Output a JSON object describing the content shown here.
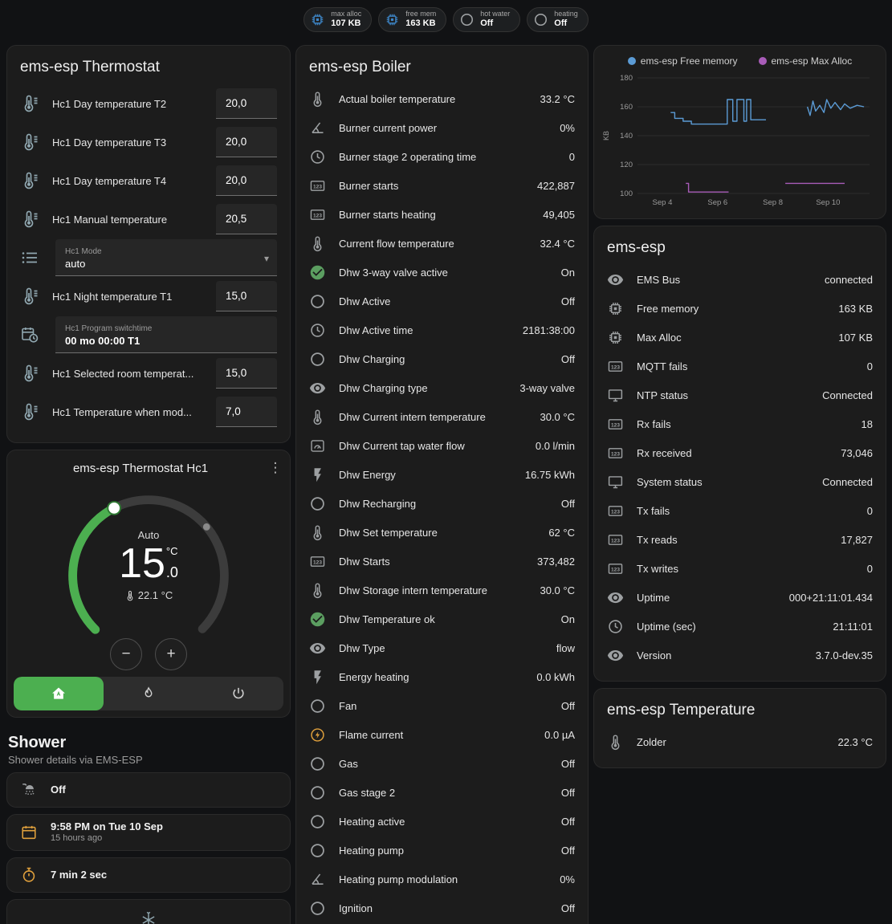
{
  "colors": {
    "accent_green": "#4caf50",
    "amber": "#e0a03c",
    "badge_blue": "#3d85c6",
    "icon_gray": "#9da0a2",
    "icon_blue_gray": "#90a7b0",
    "chart_blue": "#5b9bd5",
    "chart_purple": "#a85cb8"
  },
  "topbar": {
    "badges": [
      {
        "icon": "chip",
        "icon_color": "#3d85c6",
        "label": "max alloc",
        "value": "107 KB"
      },
      {
        "icon": "chip",
        "icon_color": "#3d85c6",
        "label": "free mem",
        "value": "163 KB"
      },
      {
        "icon": "circle",
        "icon_color": "#9da0a2",
        "label": "hot water",
        "value": "Off"
      },
      {
        "icon": "circle",
        "icon_color": "#9da0a2",
        "label": "heating",
        "value": "Off"
      }
    ]
  },
  "thermostat_card": {
    "title": "ems-esp Thermostat",
    "rows": [
      {
        "type": "number",
        "icon": "thermometer-lines",
        "label": "Hc1 Day temperature T2",
        "value": "20,0"
      },
      {
        "type": "number",
        "icon": "thermometer-lines",
        "label": "Hc1 Day temperature T3",
        "value": "20,0"
      },
      {
        "type": "number",
        "icon": "thermometer-lines",
        "label": "Hc1 Day temperature T4",
        "value": "20,0"
      },
      {
        "type": "number",
        "icon": "thermometer-lines",
        "label": "Hc1 Manual temperature",
        "value": "20,5"
      },
      {
        "type": "select",
        "icon": "format-list",
        "label": "Hc1 Mode",
        "value": "auto"
      },
      {
        "type": "number",
        "icon": "thermometer-lines",
        "label": "Hc1 Night temperature T1",
        "value": "15,0"
      },
      {
        "type": "datetime",
        "icon": "calendar-clock",
        "label": "Hc1 Program switchtime",
        "value": "00 mo 00:00 T1"
      },
      {
        "type": "number",
        "icon": "thermometer-lines",
        "label": "Hc1 Selected room temperat...",
        "value": "15,0"
      },
      {
        "type": "number",
        "icon": "thermometer-lines",
        "label": "Hc1 Temperature when mod...",
        "value": "7,0"
      }
    ]
  },
  "dial_card": {
    "title": "ems-esp Thermostat Hc1",
    "mode": "Auto",
    "target_int": "15",
    "target_dec": ".0",
    "unit": "°C",
    "current": "22.1 °C",
    "decrease_label": "−",
    "increase_label": "+",
    "buttons": [
      {
        "icon": "home-auto",
        "name": "auto-mode",
        "active": true
      },
      {
        "icon": "flame",
        "name": "heat-mode",
        "active": false
      },
      {
        "icon": "power",
        "name": "off-mode",
        "active": false
      }
    ]
  },
  "shower": {
    "title": "Shower",
    "subtitle": "Shower details via EMS-ESP",
    "cards": [
      {
        "icon": "shower",
        "icon_color": "#9da0a2",
        "primary": "Off",
        "secondary": ""
      },
      {
        "icon": "calendar",
        "icon_color": "#e0a03c",
        "primary": "9:58 PM on Tue 10 Sep",
        "secondary": "15 hours ago"
      },
      {
        "icon": "timer",
        "icon_color": "#e0a03c",
        "primary": "7 min 2 sec",
        "secondary": ""
      },
      {
        "icon": "snowflake",
        "icon_color": "#90a7b0",
        "primary": "",
        "secondary": ""
      }
    ]
  },
  "boiler_card": {
    "title": "ems-esp Boiler",
    "rows": [
      {
        "icon": "thermometer",
        "label": "Actual boiler temperature",
        "value": "33.2 °C"
      },
      {
        "icon": "gauge",
        "label": "Burner current power",
        "value": "0%"
      },
      {
        "icon": "clock",
        "label": "Burner stage 2 operating time",
        "value": "0"
      },
      {
        "icon": "counter",
        "label": "Burner starts",
        "value": "422,887"
      },
      {
        "icon": "counter",
        "label": "Burner starts heating",
        "value": "49,405"
      },
      {
        "icon": "thermometer",
        "label": "Current flow temperature",
        "value": "32.4 °C"
      },
      {
        "icon": "check-circle",
        "color": "#5b9e60",
        "label": "Dhw 3-way valve active",
        "value": "On"
      },
      {
        "icon": "circle",
        "label": "Dhw Active",
        "value": "Off"
      },
      {
        "icon": "clock",
        "label": "Dhw Active time",
        "value": "2181:38:00"
      },
      {
        "icon": "circle",
        "label": "Dhw Charging",
        "value": "Off"
      },
      {
        "icon": "eye",
        "label": "Dhw Charging type",
        "value": "3-way valve"
      },
      {
        "icon": "thermometer",
        "label": "Dhw Current intern temperature",
        "value": "30.0 °C"
      },
      {
        "icon": "water-meter",
        "label": "Dhw Current tap water flow",
        "value": "0.0 l/min"
      },
      {
        "icon": "flash",
        "label": "Dhw Energy",
        "value": "16.75 kWh"
      },
      {
        "icon": "circle",
        "label": "Dhw Recharging",
        "value": "Off"
      },
      {
        "icon": "thermometer",
        "label": "Dhw Set temperature",
        "value": "62 °C"
      },
      {
        "icon": "counter",
        "label": "Dhw Starts",
        "value": "373,482"
      },
      {
        "icon": "thermometer",
        "label": "Dhw Storage intern temperature",
        "value": "30.0 °C"
      },
      {
        "icon": "check-circle",
        "color": "#5b9e60",
        "label": "Dhw Temperature ok",
        "value": "On"
      },
      {
        "icon": "eye",
        "label": "Dhw Type",
        "value": "flow"
      },
      {
        "icon": "flash",
        "label": "Energy heating",
        "value": "0.0 kWh"
      },
      {
        "icon": "circle",
        "label": "Fan",
        "value": "Off"
      },
      {
        "icon": "current-circle",
        "color": "#e0a03c",
        "label": "Flame current",
        "value": "0.0 µA"
      },
      {
        "icon": "circle",
        "label": "Gas",
        "value": "Off"
      },
      {
        "icon": "circle",
        "label": "Gas stage 2",
        "value": "Off"
      },
      {
        "icon": "circle",
        "label": "Heating active",
        "value": "Off"
      },
      {
        "icon": "circle",
        "label": "Heating pump",
        "value": "Off"
      },
      {
        "icon": "gauge",
        "label": "Heating pump modulation",
        "value": "0%"
      },
      {
        "icon": "circle",
        "label": "Ignition",
        "value": "Off"
      }
    ]
  },
  "device_card": {
    "title": "ems-esp",
    "rows": [
      {
        "icon": "eye",
        "label": "EMS Bus",
        "value": "connected"
      },
      {
        "icon": "chip",
        "label": "Free memory",
        "value": "163 KB"
      },
      {
        "icon": "chip",
        "label": "Max Alloc",
        "value": "107 KB"
      },
      {
        "icon": "counter",
        "label": "MQTT fails",
        "value": "0"
      },
      {
        "icon": "monitor",
        "label": "NTP status",
        "value": "Connected"
      },
      {
        "icon": "counter",
        "label": "Rx fails",
        "value": "18"
      },
      {
        "icon": "counter",
        "label": "Rx received",
        "value": "73,046"
      },
      {
        "icon": "monitor",
        "label": "System status",
        "value": "Connected"
      },
      {
        "icon": "counter",
        "label": "Tx fails",
        "value": "0"
      },
      {
        "icon": "counter",
        "label": "Tx reads",
        "value": "17,827"
      },
      {
        "icon": "counter",
        "label": "Tx writes",
        "value": "0"
      },
      {
        "icon": "eye",
        "label": "Uptime",
        "value": "000+21:11:01.434"
      },
      {
        "icon": "clock",
        "label": "Uptime (sec)",
        "value": "21:11:01"
      },
      {
        "icon": "eye",
        "label": "Version",
        "value": "3.7.0-dev.35"
      }
    ]
  },
  "temp_card": {
    "title": "ems-esp Temperature",
    "rows": [
      {
        "icon": "thermometer",
        "label": "Zolder",
        "value": "22.3 °C"
      }
    ]
  },
  "chart_data": {
    "type": "line",
    "title": "",
    "xlabel": "",
    "ylabel": "KB",
    "ylim": [
      100,
      180
    ],
    "yticks": [
      100,
      120,
      140,
      160,
      180
    ],
    "xtick_labels": [
      "Sep 4",
      "Sep 6",
      "Sep 8",
      "Sep 10"
    ],
    "xtick_days": [
      4,
      6,
      8,
      10
    ],
    "xlim": [
      3.1,
      11.5
    ],
    "grid": true,
    "legend_position": "top",
    "series": [
      {
        "name": "ems-esp Free memory",
        "color": "#5b9bd5",
        "unit": "KB",
        "segments": [
          [
            [
              4.3,
              156
            ],
            [
              4.45,
              156
            ],
            [
              4.45,
              152
            ],
            [
              4.75,
              152
            ],
            [
              4.75,
              150
            ],
            [
              5.05,
              150
            ],
            [
              5.05,
              148
            ],
            [
              6.35,
              148
            ],
            [
              6.35,
              165
            ],
            [
              6.55,
              165
            ],
            [
              6.55,
              150
            ],
            [
              6.7,
              150
            ],
            [
              6.7,
              165
            ],
            [
              6.95,
              165
            ],
            [
              6.95,
              150
            ],
            [
              7.05,
              150
            ],
            [
              7.05,
              165
            ],
            [
              7.2,
              165
            ],
            [
              7.2,
              151
            ],
            [
              7.75,
              151
            ]
          ],
          [
            [
              9.25,
              160
            ],
            [
              9.35,
              154
            ],
            [
              9.45,
              164
            ],
            [
              9.55,
              157
            ],
            [
              9.7,
              161
            ],
            [
              9.85,
              156
            ],
            [
              9.95,
              165
            ],
            [
              10.1,
              159
            ],
            [
              10.25,
              163
            ],
            [
              10.45,
              158
            ],
            [
              10.6,
              162
            ],
            [
              10.8,
              159
            ],
            [
              11.05,
              161
            ],
            [
              11.3,
              160
            ]
          ]
        ]
      },
      {
        "name": "ems-esp Max Alloc",
        "color": "#a85cb8",
        "unit": "KB",
        "segments": [
          [
            [
              4.85,
              107
            ],
            [
              4.95,
              107
            ],
            [
              4.95,
              101
            ],
            [
              6.4,
              101
            ]
          ],
          [
            [
              8.45,
              107
            ],
            [
              10.6,
              107
            ]
          ]
        ]
      }
    ]
  }
}
